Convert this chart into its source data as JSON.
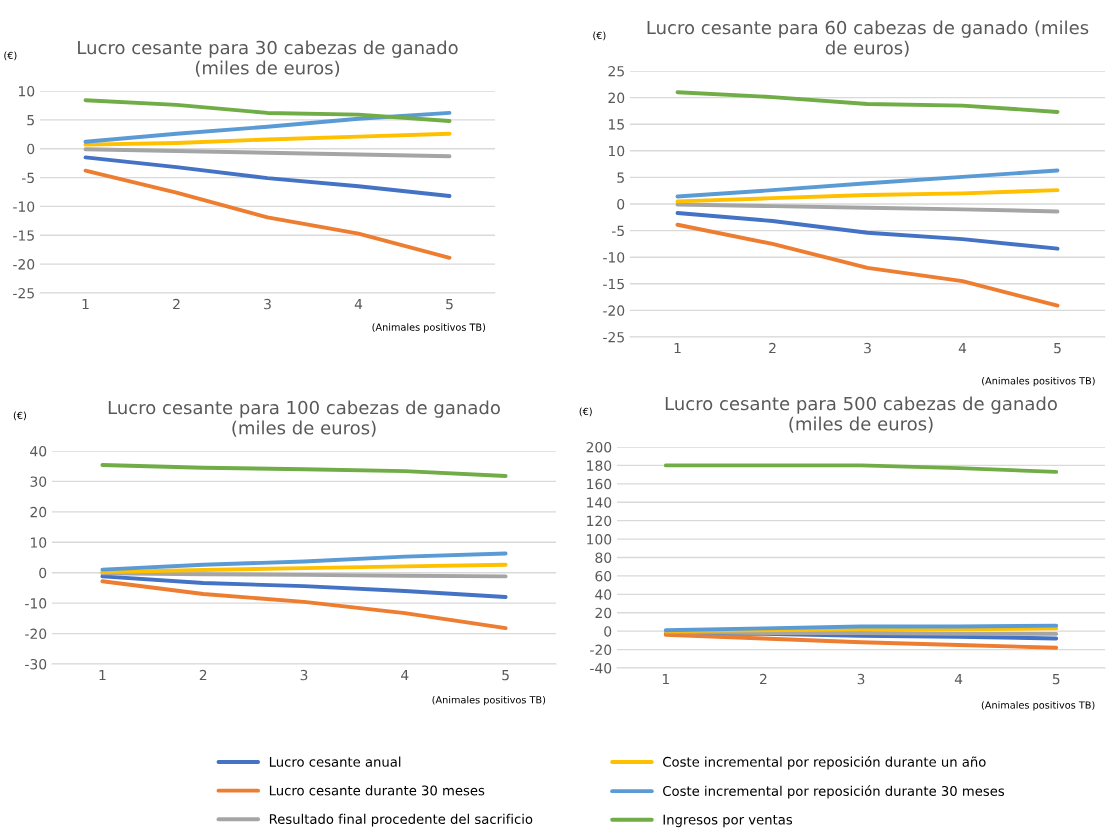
{
  "chart_data": [
    {
      "type": "line",
      "title": "Lucro cesante para 30 cabezas de ganado\n(miles de euros)",
      "ylabel": "(€)",
      "xlabel": "(Animales positivos TB)",
      "categories": [
        "1",
        "2",
        "3",
        "4",
        "5"
      ],
      "ylim": [
        -25,
        10
      ],
      "yticks": [
        -25,
        -20,
        -15,
        -10,
        -5,
        0,
        5,
        10
      ],
      "grid": "y",
      "legend": "bottom",
      "series": [
        {
          "name": "Lucro cesante anual",
          "color": "#4472c4",
          "values": [
            -1.5,
            -3.2,
            -5.1,
            -6.5,
            -8.2
          ]
        },
        {
          "name": "Lucro cesante durante 30 meses",
          "color": "#ed7d31",
          "values": [
            -3.8,
            -7.6,
            -11.9,
            -14.7,
            -18.9
          ]
        },
        {
          "name": "Resultado final procedente del sacrificio",
          "color": "#a5a5a5",
          "values": [
            -0.1,
            -0.4,
            -0.7,
            -1.0,
            -1.3
          ]
        },
        {
          "name": "Coste incremental por reposición durante un año",
          "color": "#ffc000",
          "values": [
            0.7,
            1.0,
            1.6,
            2.1,
            2.6
          ]
        },
        {
          "name": "Coste incremental por reposición durante 30 meses",
          "color": "#5b9bd5",
          "values": [
            1.2,
            2.6,
            3.8,
            5.2,
            6.2
          ]
        },
        {
          "name": "Ingresos por ventas",
          "color": "#70ad47",
          "values": [
            8.4,
            7.6,
            6.2,
            5.9,
            4.8
          ]
        }
      ]
    },
    {
      "type": "line",
      "title": "Lucro cesante para 60 cabezas de ganado (miles\nde euros)",
      "ylabel": "(€)",
      "xlabel": "(Animales positivos TB)",
      "categories": [
        "1",
        "2",
        "3",
        "4",
        "5"
      ],
      "ylim": [
        -25,
        25
      ],
      "yticks": [
        -25,
        -20,
        -15,
        -10,
        -5,
        0,
        5,
        10,
        15,
        20,
        25
      ],
      "grid": "y",
      "series": [
        {
          "color": "#4472c4",
          "values": [
            -1.7,
            -3.2,
            -5.4,
            -6.6,
            -8.4
          ]
        },
        {
          "color": "#ed7d31",
          "values": [
            -3.9,
            -7.5,
            -12.0,
            -14.5,
            -19.1
          ]
        },
        {
          "color": "#a5a5a5",
          "values": [
            -0.1,
            -0.4,
            -0.7,
            -1.0,
            -1.4
          ]
        },
        {
          "color": "#ffc000",
          "values": [
            0.5,
            1.1,
            1.7,
            2.0,
            2.6
          ]
        },
        {
          "color": "#5b9bd5",
          "values": [
            1.4,
            2.6,
            3.9,
            5.1,
            6.3
          ]
        },
        {
          "color": "#70ad47",
          "values": [
            21.0,
            20.1,
            18.8,
            18.5,
            17.3
          ]
        }
      ]
    },
    {
      "type": "line",
      "title": "Lucro cesante para 100 cabezas de ganado\n(miles de euros)",
      "ylabel": "(€)",
      "xlabel": "(Animales positivos TB)",
      "categories": [
        "1",
        "2",
        "3",
        "4",
        "5"
      ],
      "ylim": [
        -30,
        40
      ],
      "yticks": [
        -30,
        -20,
        -10,
        0,
        10,
        20,
        30,
        40
      ],
      "grid": "y",
      "series": [
        {
          "color": "#4472c4",
          "values": [
            -1.2,
            -3.4,
            -4.4,
            -6.0,
            -8.0
          ]
        },
        {
          "color": "#ed7d31",
          "values": [
            -2.8,
            -7.0,
            -9.6,
            -13.3,
            -18.2
          ]
        },
        {
          "color": "#a5a5a5",
          "values": [
            -0.2,
            -0.5,
            -0.7,
            -1.0,
            -1.2
          ]
        },
        {
          "color": "#ffc000",
          "values": [
            0.2,
            0.9,
            1.5,
            2.1,
            2.6
          ]
        },
        {
          "color": "#5b9bd5",
          "values": [
            1.0,
            2.6,
            3.7,
            5.3,
            6.3
          ]
        },
        {
          "color": "#70ad47",
          "values": [
            35.4,
            34.5,
            34.0,
            33.4,
            31.8
          ]
        }
      ]
    },
    {
      "type": "line",
      "title": "Lucro cesante para 500 cabezas de ganado\n(miles de euros)",
      "ylabel": "(€)",
      "xlabel": "(Animales positivos TB)",
      "categories": [
        "1",
        "2",
        "3",
        "4",
        "5"
      ],
      "ylim": [
        -40,
        200
      ],
      "yticks": [
        -40,
        -20,
        0,
        20,
        40,
        60,
        80,
        100,
        120,
        140,
        160,
        180,
        200
      ],
      "grid": "y",
      "series": [
        {
          "color": "#4472c4",
          "values": [
            -3,
            -3,
            -5,
            -6,
            -8
          ]
        },
        {
          "color": "#ed7d31",
          "values": [
            -4,
            -8,
            -12,
            -15,
            -18
          ]
        },
        {
          "color": "#a5a5a5",
          "values": [
            -1,
            -2,
            -2,
            -3,
            -3
          ]
        },
        {
          "color": "#ffc000",
          "values": [
            0,
            1,
            2,
            2,
            3
          ]
        },
        {
          "color": "#5b9bd5",
          "values": [
            1,
            3,
            5,
            5,
            6
          ]
        },
        {
          "color": "#70ad47",
          "values": [
            180,
            180,
            180,
            177,
            173
          ]
        }
      ]
    }
  ]
}
